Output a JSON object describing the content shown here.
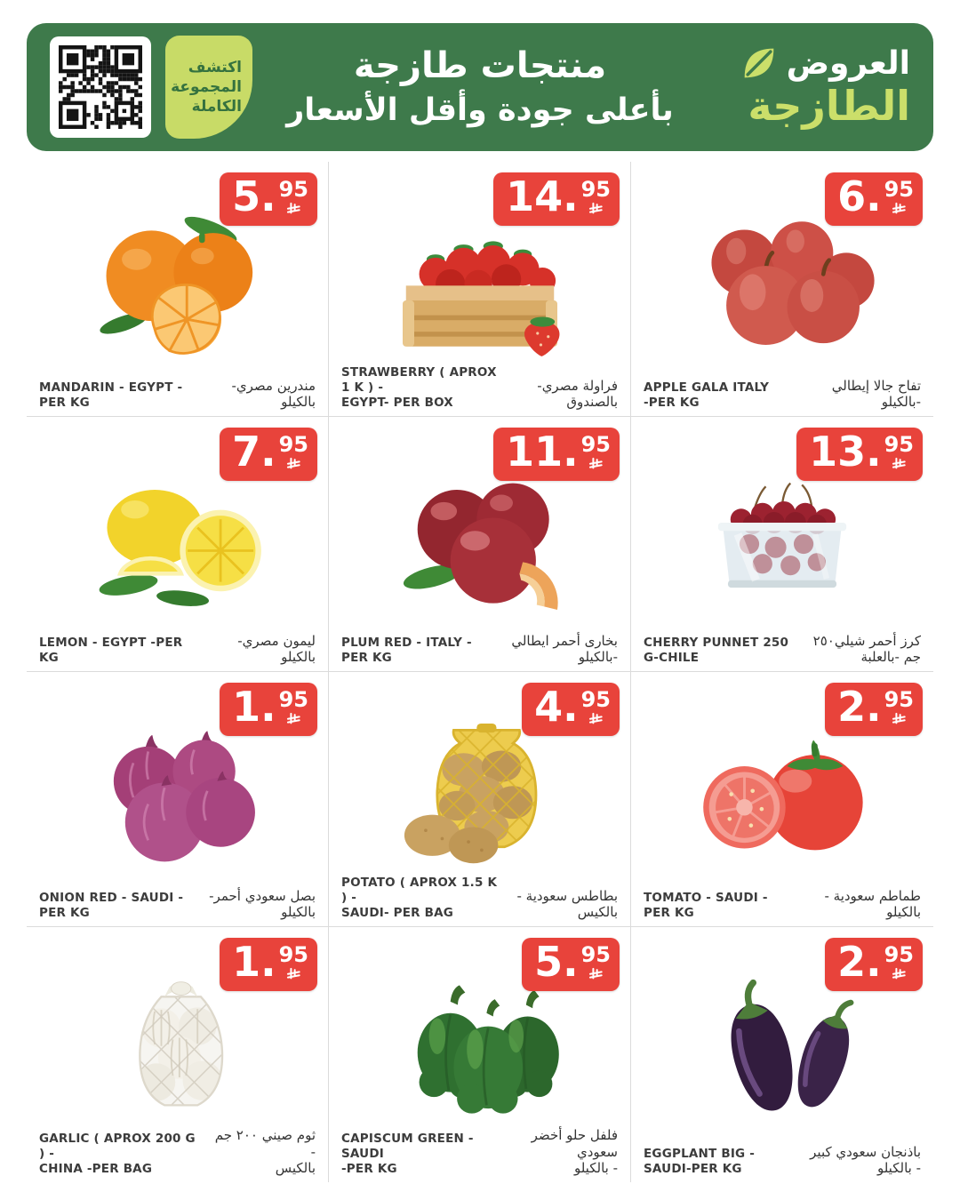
{
  "header": {
    "qr_badge_label": "اكتشف\nالمجموعة\nالكاملة",
    "title_line1": "منتجات طازجة",
    "title_line2": "بأعلى جودة وأقل الأسعار",
    "brand_word_top": "العروض",
    "brand_word_bottom": "الطازجة",
    "icons": [
      "qr-code",
      "leaf-icon"
    ]
  },
  "pricing": {
    "separator": ".",
    "currency_icon": "saudi-riyal-symbol"
  },
  "colors": {
    "header_green": "#3E7A4B",
    "header_light_green": "#CBDF6A",
    "badge_text_green": "#35723F",
    "price_red": "#E8433B",
    "label_text": "#3C3C3C",
    "divider": "#DBDBDB",
    "page_background": "#FFFFFF"
  },
  "products": [
    {
      "name_en": "MANDARIN - EGYPT -PER KG",
      "name_ar": "مندرين مصري-بالكيلو",
      "price_whole": "5",
      "price_cents": "95",
      "image": "mandarin"
    },
    {
      "name_en": "STRAWBERRY ( APROX 1 K ) -\nEGYPT- PER BOX",
      "name_ar": "فراولة مصري-\nبالصندوق",
      "price_whole": "14",
      "price_cents": "95",
      "image": "strawberry-box"
    },
    {
      "name_en": "APPLE GALA ITALY\n-PER KG",
      "name_ar": "تفاح جالا إيطالي\n-بالكيلو",
      "price_whole": "6",
      "price_cents": "95",
      "image": "apple-gala"
    },
    {
      "name_en": "LEMON - EGYPT -PER KG",
      "name_ar": "ليمون مصري-بالكيلو",
      "price_whole": "7",
      "price_cents": "95",
      "image": "lemon"
    },
    {
      "name_en": "PLUM RED - ITALY -PER KG",
      "name_ar": "بخارى أحمر ايطالي -بالكيلو",
      "price_whole": "11",
      "price_cents": "95",
      "image": "plum-red"
    },
    {
      "name_en": "CHERRY PUNNET 250 G-CHILE",
      "name_ar": "كرز أحمر شيلي٢٥٠ جم -بالعلبة",
      "price_whole": "13",
      "price_cents": "95",
      "image": "cherry-punnet"
    },
    {
      "name_en": "ONION RED - SAUDI - PER KG",
      "name_ar": "بصل سعودي أحمر-بالكيلو",
      "price_whole": "1",
      "price_cents": "95",
      "image": "onion-red"
    },
    {
      "name_en": "POTATO ( APROX 1.5 K ) -\nSAUDI- PER BAG",
      "name_ar": "بطاطس سعودية -\nبالكيس",
      "price_whole": "4",
      "price_cents": "95",
      "image": "potato-bag"
    },
    {
      "name_en": "TOMATO - SAUDI - PER KG",
      "name_ar": "طماطم سعودية - بالكيلو",
      "price_whole": "2",
      "price_cents": "95",
      "image": "tomato"
    },
    {
      "name_en": "GARLIC ( APROX 200 G ) -\nCHINA -PER BAG",
      "name_ar": "ثوم صيني ٢٠٠ جم -\nبالكيس",
      "price_whole": "1",
      "price_cents": "95",
      "image": "garlic-bag"
    },
    {
      "name_en": "CAPISCUM GREEN - SAUDI\n-PER KG",
      "name_ar": "فلفل حلو أخضر سعودي\n- بالكيلو",
      "price_whole": "5",
      "price_cents": "95",
      "image": "capsicum-green"
    },
    {
      "name_en": "EGGPLANT BIG - SAUDI-PER KG",
      "name_ar": "باذنجان سعودي كبير - بالكيلو",
      "price_whole": "2",
      "price_cents": "95",
      "image": "eggplant"
    }
  ]
}
